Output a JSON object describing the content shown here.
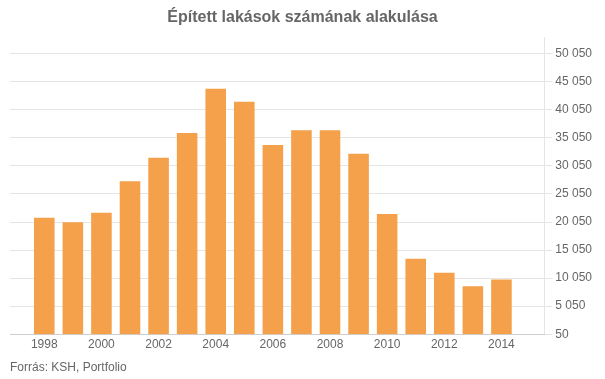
{
  "chart_data": {
    "type": "bar",
    "title": "Épített lakások számának alakulása",
    "annotations": [
      "Forrás: KSH, Portfolio"
    ],
    "x": [
      1998,
      1999,
      2000,
      2001,
      2002,
      2003,
      2004,
      2005,
      2006,
      2007,
      2008,
      2009,
      2010,
      2011,
      2012,
      2013,
      2014
    ],
    "values": [
      20800,
      20000,
      21700,
      27300,
      31500,
      35900,
      43800,
      41500,
      33800,
      36400,
      36400,
      32200,
      21500,
      13500,
      11000,
      8600,
      9800
    ],
    "color": "#F5A04A",
    "xlim": [
      1996.8,
      2015.5
    ],
    "xticks": [
      1998,
      2000,
      2002,
      2004,
      2006,
      2008,
      2010,
      2012,
      2014
    ],
    "ylim": [
      50,
      53000
    ],
    "yticks": [
      50,
      {
        "value": 5050,
        "label": "5 050"
      },
      {
        "value": 10050,
        "label": "10 050"
      },
      {
        "value": 15050,
        "label": "15 050"
      },
      {
        "value": 20050,
        "label": "20 050"
      },
      {
        "value": 25050,
        "label": "25 050"
      },
      {
        "value": 30050,
        "label": "30 050"
      },
      {
        "value": 35050,
        "label": "35 050"
      },
      {
        "value": 40050,
        "label": "40 050"
      },
      {
        "value": 45050,
        "label": "45 050"
      },
      {
        "value": 50050,
        "label": "50 050"
      }
    ],
    "grid": true
  }
}
